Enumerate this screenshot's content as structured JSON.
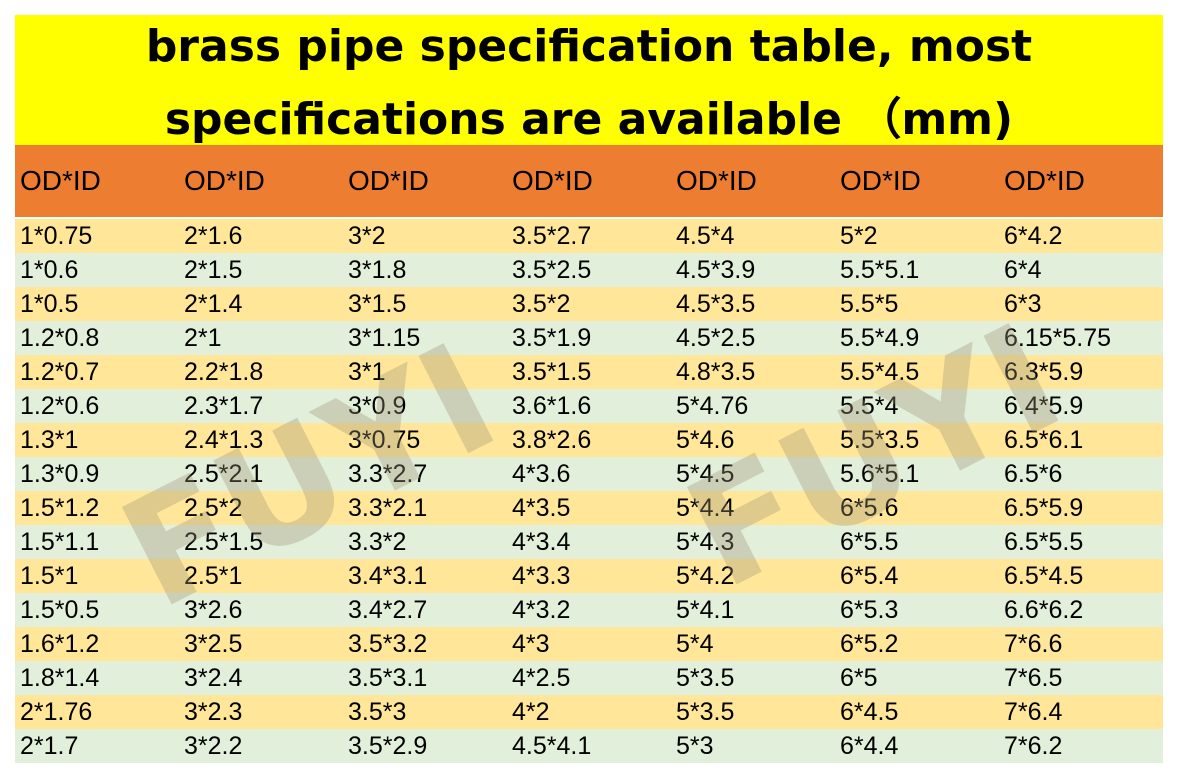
{
  "title_lines": [
    "brass pipe specification table, most",
    "specifications are available （mm)"
  ],
  "table": {
    "header": [
      "OD*ID",
      "OD*ID",
      "OD*ID",
      "OD*ID",
      "OD*ID",
      "OD*ID",
      "OD*ID"
    ],
    "rows": [
      [
        "1*0.75",
        "2*1.6",
        "3*2",
        "3.5*2.7",
        "4.5*4",
        "5*2",
        "6*4.2"
      ],
      [
        "1*0.6",
        "2*1.5",
        "3*1.8",
        "3.5*2.5",
        "4.5*3.9",
        "5.5*5.1",
        "6*4"
      ],
      [
        "1*0.5",
        "2*1.4",
        "3*1.5",
        "3.5*2",
        "4.5*3.5",
        "5.5*5",
        "6*3"
      ],
      [
        "1.2*0.8",
        "2*1",
        "3*1.15",
        "3.5*1.9",
        "4.5*2.5",
        "5.5*4.9",
        "6.15*5.75"
      ],
      [
        "1.2*0.7",
        "2.2*1.8",
        "3*1",
        "3.5*1.5",
        "4.8*3.5",
        "5.5*4.5",
        "6.3*5.9"
      ],
      [
        "1.2*0.6",
        "2.3*1.7",
        "3*0.9",
        "3.6*1.6",
        "5*4.76",
        "5.5*4",
        "6.4*5.9"
      ],
      [
        "1.3*1",
        "2.4*1.3",
        "3*0.75",
        "3.8*2.6",
        "5*4.6",
        "5.5*3.5",
        "6.5*6.1"
      ],
      [
        "1.3*0.9",
        "2.5*2.1",
        "3.3*2.7",
        "4*3.6",
        "5*4.5",
        "5.6*5.1",
        "6.5*6"
      ],
      [
        "1.5*1.2",
        "2.5*2",
        "3.3*2.1",
        "4*3.5",
        "5*4.4",
        "6*5.6",
        "6.5*5.9"
      ],
      [
        "1.5*1.1",
        "2.5*1.5",
        "3.3*2",
        "4*3.4",
        "5*4.3",
        "6*5.5",
        "6.5*5.5"
      ],
      [
        "1.5*1",
        "2.5*1",
        "3.4*3.1",
        "4*3.3",
        "5*4.2",
        "6*5.4",
        "6.5*4.5"
      ],
      [
        "1.5*0.5",
        "3*2.6",
        "3.4*2.7",
        "4*3.2",
        "5*4.1",
        "6*5.3",
        "6.6*6.2"
      ],
      [
        "1.6*1.2",
        "3*2.5",
        "3.5*3.2",
        "4*3",
        "5*4",
        "6*5.2",
        "7*6.6"
      ],
      [
        "1.8*1.4",
        "3*2.4",
        "3.5*3.1",
        "4*2.5",
        "5*3.5",
        "6*5",
        "7*6.5"
      ],
      [
        "2*1.76",
        "3*2.3",
        "3.5*3",
        "4*2",
        "5*3.5",
        "6*4.5",
        "7*6.4"
      ],
      [
        "2*1.7",
        "3*2.2",
        "3.5*2.9",
        "4.5*4.1",
        "5*3",
        "6*4.4",
        "7*6.2"
      ]
    ]
  },
  "watermarks": [
    "FUYI",
    "FUYI"
  ]
}
